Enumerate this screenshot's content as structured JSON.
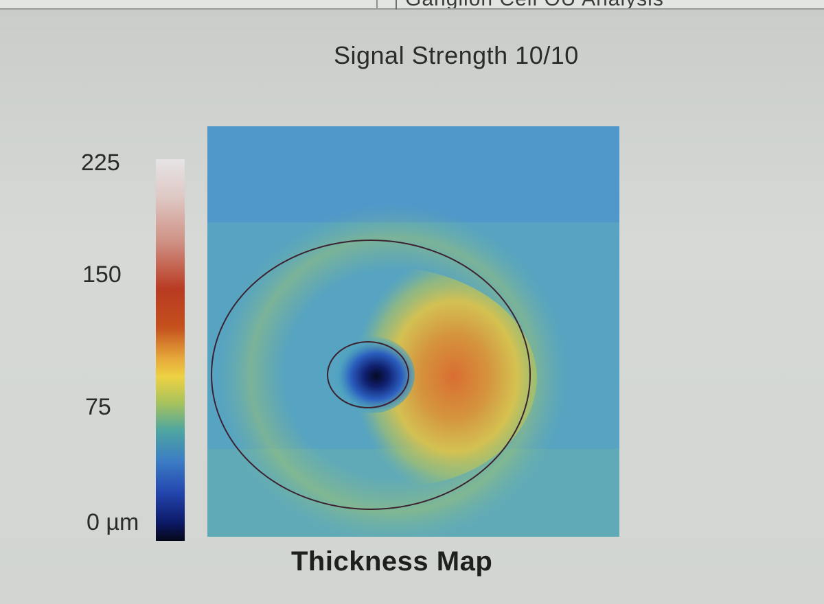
{
  "window": {
    "title_partial": "Ganglion Cell OU Analysis"
  },
  "header": {
    "signal_strength_label": "Signal Strength  10/10"
  },
  "colorbar": {
    "ticks": [
      "225",
      "150",
      "75",
      "0 µm"
    ],
    "unit": "µm",
    "max": 225,
    "min": 0
  },
  "thickness_map": {
    "title": "Thickness Map"
  },
  "colors": {
    "thick": "#c4501c",
    "mid": "#eed243",
    "thin": "#0d1a6a",
    "background_map": "#53a0c4"
  }
}
